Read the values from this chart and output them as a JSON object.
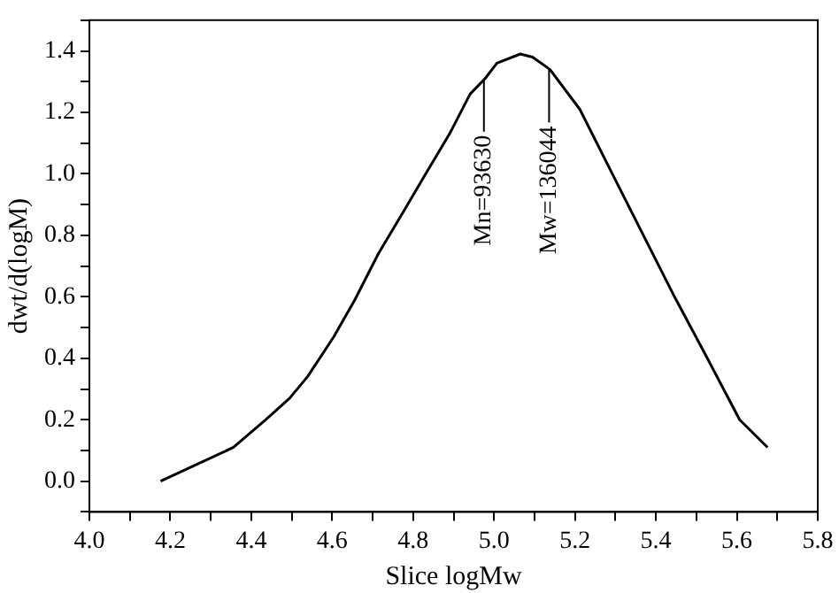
{
  "chart_data": {
    "type": "line",
    "xlabel": "Slice logMw",
    "ylabel": "dwt/d(logM)",
    "x": [
      4.176,
      4.356,
      4.436,
      4.495,
      4.539,
      4.604,
      4.656,
      4.714,
      4.773,
      4.831,
      4.89,
      4.941,
      4.978,
      5.007,
      5.065,
      5.095,
      5.138,
      5.212,
      5.3,
      5.373,
      5.446,
      5.519,
      5.607,
      5.676
    ],
    "series": [
      {
        "color": "#000000",
        "values": [
          0.0,
          0.11,
          0.2,
          0.27,
          0.34,
          0.47,
          0.59,
          0.74,
          0.87,
          1.0,
          1.13,
          1.26,
          1.31,
          1.36,
          1.39,
          1.38,
          1.34,
          1.21,
          0.98,
          0.79,
          0.6,
          0.42,
          0.2,
          0.11
        ]
      }
    ],
    "xlim": [
      4.0,
      5.8
    ],
    "xticks": [
      {
        "value": 4.0,
        "label": "4.0"
      },
      {
        "value": 4.1,
        "label": null
      },
      4.2,
      {
        "value": 4.3,
        "label": null
      },
      4.4,
      {
        "value": 4.5,
        "label": null
      },
      4.6,
      {
        "value": 4.7,
        "label": null
      },
      4.8,
      {
        "value": 4.9,
        "label": null
      },
      {
        "value": 5.0,
        "label": "5.0"
      },
      {
        "value": 5.1,
        "label": null
      },
      5.2,
      {
        "value": 5.3,
        "label": null
      },
      5.4,
      {
        "value": 5.5,
        "label": null
      },
      5.6,
      {
        "value": 5.7,
        "label": null
      },
      5.8
    ],
    "ylim": [
      -0.1,
      1.5
    ],
    "yticks": [
      {
        "value": -0.1,
        "label": null
      },
      {
        "value": 0,
        "label": "0.0"
      },
      {
        "value": 0.1,
        "label": null
      },
      0.2,
      {
        "value": 0.3,
        "label": null
      },
      0.4,
      {
        "value": 0.5,
        "label": null
      },
      0.6,
      {
        "value": 0.7,
        "label": null
      },
      0.8,
      {
        "value": 0.9,
        "label": null
      },
      {
        "value": 1.0,
        "label": "1.0"
      },
      {
        "value": 1.1,
        "label": null
      },
      1.2,
      {
        "value": 1.3,
        "label": null
      },
      1.4,
      {
        "value": 1.5,
        "label": null
      }
    ],
    "annotations": [
      {
        "text": "Mn=93630",
        "x": 4.975,
        "y": 1.31
      },
      {
        "text": "Mw=136044",
        "x": 5.136,
        "y": 1.34
      }
    ],
    "grid": false,
    "legend": false,
    "marker": "none",
    "line_style": "solid"
  }
}
